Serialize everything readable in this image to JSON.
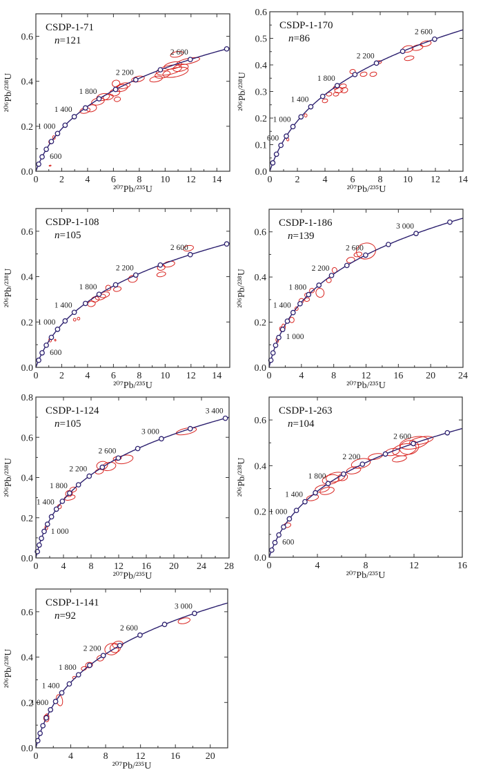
{
  "chart_data": [
    {
      "type": "scatter",
      "subtype": "concordia",
      "title": "CSDP-1-71",
      "n_label": "n",
      "n": "=121",
      "xlabel": "²⁰⁷Pb/²³⁵U",
      "ylabel": "²⁰⁶Pb/²³⁸U",
      "xlim": [
        0,
        15
      ],
      "ylim": [
        0,
        0.7
      ],
      "xticks": [
        "0",
        "2",
        "4",
        "6",
        "8",
        "10",
        "12",
        "14"
      ],
      "xtick_values": [
        0,
        2,
        4,
        6,
        8,
        10,
        12,
        14
      ],
      "yticks": [
        "0.0",
        "0.2",
        "0.4",
        "0.6"
      ],
      "ytick_values": [
        0,
        0.2,
        0.4,
        0.6
      ],
      "marker_interval_ma": 200,
      "marker_max_ma": 2800,
      "age_labels": [
        {
          "age": 600,
          "text": "600"
        },
        {
          "age": 1000,
          "text": "1 000"
        },
        {
          "age": 1400,
          "text": "1 400"
        },
        {
          "age": 1800,
          "text": "1 800"
        },
        {
          "age": 2200,
          "text": "2 200"
        },
        {
          "age": 2600,
          "text": "2 600"
        }
      ],
      "ellipses": [
        [
          1.1,
          0.13,
          0.1,
          0.008
        ],
        [
          1.4,
          0.15,
          0.1,
          0.008
        ],
        [
          1.1,
          0.025,
          0.08,
          0.002
        ],
        [
          3.8,
          0.27,
          0.4,
          0.012
        ],
        [
          4.3,
          0.28,
          0.4,
          0.015
        ],
        [
          4.8,
          0.31,
          0.5,
          0.015
        ],
        [
          5.2,
          0.33,
          0.5,
          0.015
        ],
        [
          5.6,
          0.33,
          0.4,
          0.012
        ],
        [
          6.1,
          0.35,
          0.4,
          0.015
        ],
        [
          6.6,
          0.37,
          0.5,
          0.015
        ],
        [
          6.8,
          0.38,
          0.5,
          0.012
        ],
        [
          6.2,
          0.39,
          0.3,
          0.015
        ],
        [
          6.3,
          0.32,
          0.25,
          0.01
        ],
        [
          7.9,
          0.41,
          0.5,
          0.012
        ],
        [
          9.3,
          0.41,
          0.5,
          0.012
        ],
        [
          9.8,
          0.43,
          0.6,
          0.015
        ],
        [
          10.3,
          0.45,
          1.0,
          0.02
        ],
        [
          10.6,
          0.47,
          0.7,
          0.015
        ],
        [
          11.2,
          0.46,
          0.6,
          0.015
        ],
        [
          10.9,
          0.52,
          0.5,
          0.012
        ],
        [
          11.8,
          0.49,
          0.9,
          0.012
        ],
        [
          10.8,
          0.44,
          1.0,
          0.02
        ]
      ]
    },
    {
      "type": "scatter",
      "subtype": "concordia",
      "title": "CSDP-1-170",
      "n_label": "n",
      "n": "=86",
      "xlabel": "²⁰⁷Pb/²³⁵U",
      "ylabel": "²⁰⁶Pb/²³⁸U",
      "xlim": [
        0,
        14
      ],
      "ylim": [
        0,
        0.6
      ],
      "xticks": [
        "0",
        "2",
        "4",
        "6",
        "8",
        "10",
        "12",
        "14"
      ],
      "xtick_values": [
        0,
        2,
        4,
        6,
        8,
        10,
        12,
        14
      ],
      "yticks": [
        "0.0",
        "0.1",
        "0.2",
        "0.3",
        "0.4",
        "0.5",
        "0.6"
      ],
      "ytick_values": [
        0,
        0.1,
        0.2,
        0.3,
        0.4,
        0.5,
        0.6
      ],
      "marker_interval_ma": 200,
      "marker_max_ma": 2600,
      "age_labels": [
        {
          "age": 600,
          "text": "600"
        },
        {
          "age": 1000,
          "text": "1 000"
        },
        {
          "age": 1400,
          "text": "1 400"
        },
        {
          "age": 1800,
          "text": "1 800"
        },
        {
          "age": 2200,
          "text": "2 200"
        },
        {
          "age": 2600,
          "text": "2 600"
        }
      ],
      "ellipses": [
        [
          1.3,
          0.12,
          0.08,
          0.006
        ],
        [
          2.6,
          0.21,
          0.1,
          0.006
        ],
        [
          4.0,
          0.265,
          0.2,
          0.007
        ],
        [
          4.3,
          0.29,
          0.2,
          0.007
        ],
        [
          4.8,
          0.29,
          0.2,
          0.007
        ],
        [
          5.0,
          0.305,
          0.3,
          0.01
        ],
        [
          5.3,
          0.32,
          0.25,
          0.008
        ],
        [
          5.4,
          0.305,
          0.25,
          0.01
        ],
        [
          4.8,
          0.315,
          0.2,
          0.006
        ],
        [
          6.0,
          0.375,
          0.2,
          0.008
        ],
        [
          6.8,
          0.365,
          0.25,
          0.008
        ],
        [
          7.5,
          0.365,
          0.25,
          0.008
        ],
        [
          7.9,
          0.41,
          0.2,
          0.006
        ],
        [
          10.1,
          0.425,
          0.35,
          0.008
        ],
        [
          10.0,
          0.46,
          0.4,
          0.012
        ],
        [
          10.7,
          0.465,
          0.4,
          0.01
        ],
        [
          11.3,
          0.48,
          0.4,
          0.01
        ]
      ]
    },
    {
      "type": "scatter",
      "subtype": "concordia",
      "title": "CSDP-1-108",
      "n_label": "n",
      "n": "=105",
      "xlabel": "²⁰⁷Pb/²³⁵U",
      "ylabel": "²⁰⁶Pb/²³⁸U",
      "xlim": [
        0,
        15
      ],
      "ylim": [
        0,
        0.7
      ],
      "xticks": [
        "0",
        "2",
        "4",
        "6",
        "8",
        "10",
        "12",
        "14"
      ],
      "xtick_values": [
        0,
        2,
        4,
        6,
        8,
        10,
        12,
        14
      ],
      "yticks": [
        "0.0",
        "0.2",
        "0.4",
        "0.6"
      ],
      "ytick_values": [
        0,
        0.2,
        0.4,
        0.6
      ],
      "marker_interval_ma": 200,
      "marker_max_ma": 2800,
      "age_labels": [
        {
          "age": 600,
          "text": "600"
        },
        {
          "age": 1000,
          "text": "1 000"
        },
        {
          "age": 1400,
          "text": "1 400"
        },
        {
          "age": 1800,
          "text": "1 800"
        },
        {
          "age": 2200,
          "text": "2 200"
        },
        {
          "age": 2600,
          "text": "2 600"
        }
      ],
      "ellipses": [
        [
          1.1,
          0.12,
          0.1,
          0.008
        ],
        [
          1.5,
          0.12,
          0.05,
          0.004
        ],
        [
          3.0,
          0.21,
          0.1,
          0.006
        ],
        [
          3.3,
          0.215,
          0.1,
          0.006
        ],
        [
          4.3,
          0.28,
          0.3,
          0.012
        ],
        [
          4.6,
          0.3,
          0.3,
          0.012
        ],
        [
          5.0,
          0.31,
          0.4,
          0.012
        ],
        [
          5.3,
          0.32,
          0.4,
          0.012
        ],
        [
          5.6,
          0.35,
          0.2,
          0.012
        ],
        [
          6.3,
          0.345,
          0.3,
          0.01
        ],
        [
          7.5,
          0.39,
          0.35,
          0.015
        ],
        [
          9.7,
          0.41,
          0.35,
          0.01
        ],
        [
          9.7,
          0.44,
          0.3,
          0.012
        ],
        [
          10.3,
          0.455,
          0.45,
          0.012
        ],
        [
          11.8,
          0.525,
          0.4,
          0.012
        ]
      ]
    },
    {
      "type": "scatter",
      "subtype": "concordia",
      "title": "CSDP-1-186",
      "n_label": "n",
      "n": "=139",
      "xlabel": "²⁰⁷Pb/²³⁵U",
      "ylabel": "²⁰⁶Pb/²³⁸U",
      "xlim": [
        0,
        24
      ],
      "ylim": [
        0,
        0.7
      ],
      "xticks": [
        "0",
        "4",
        "8",
        "12",
        "16",
        "20",
        "24"
      ],
      "xtick_values": [
        0,
        4,
        8,
        12,
        16,
        20,
        24
      ],
      "yticks": [
        "0.0",
        "0.2",
        "0.4",
        "0.6"
      ],
      "ytick_values": [
        0,
        0.2,
        0.4,
        0.6
      ],
      "marker_interval_ma": 200,
      "marker_max_ma": 3200,
      "age_labels": [
        {
          "age": 1000,
          "text": "1 000"
        },
        {
          "age": 1400,
          "text": "1 400"
        },
        {
          "age": 1800,
          "text": "1 800"
        },
        {
          "age": 2200,
          "text": "2 200"
        },
        {
          "age": 2600,
          "text": "2 600"
        },
        {
          "age": 3000,
          "text": "3 000"
        }
      ],
      "ellipses": [
        [
          1.0,
          0.12,
          0.15,
          0.01
        ],
        [
          1.5,
          0.17,
          0.2,
          0.01
        ],
        [
          1.8,
          0.18,
          0.2,
          0.012
        ],
        [
          2.8,
          0.21,
          0.3,
          0.012
        ],
        [
          3.4,
          0.26,
          0.2,
          0.008
        ],
        [
          4.0,
          0.295,
          0.3,
          0.01
        ],
        [
          4.7,
          0.3,
          0.3,
          0.008
        ],
        [
          4.6,
          0.32,
          0.2,
          0.008
        ],
        [
          5.3,
          0.34,
          0.3,
          0.01
        ],
        [
          6.3,
          0.33,
          0.5,
          0.02
        ],
        [
          7.4,
          0.385,
          0.3,
          0.01
        ],
        [
          8.1,
          0.43,
          0.3,
          0.012
        ],
        [
          10.1,
          0.475,
          0.5,
          0.012
        ],
        [
          11.0,
          0.5,
          0.5,
          0.01
        ],
        [
          12.0,
          0.515,
          1.2,
          0.035
        ]
      ]
    },
    {
      "type": "scatter",
      "subtype": "concordia",
      "title": "CSDP-1-124",
      "n_label": "n",
      "n": "=105",
      "xlabel": "²⁰⁷Pb/²³⁵U",
      "ylabel": "²⁰⁶Pb/²³⁸U",
      "xlim": [
        0,
        28
      ],
      "ylim": [
        0,
        0.8
      ],
      "xticks": [
        "0",
        "4",
        "8",
        "12",
        "16",
        "20",
        "24",
        "28"
      ],
      "xtick_values": [
        0,
        4,
        8,
        12,
        16,
        20,
        24,
        28
      ],
      "yticks": [
        "0.0",
        "0.2",
        "0.4",
        "0.6",
        "0.8"
      ],
      "ytick_values": [
        0,
        0.2,
        0.4,
        0.6,
        0.8
      ],
      "marker_interval_ma": 200,
      "marker_max_ma": 3400,
      "age_labels": [
        {
          "age": 1000,
          "text": "1 000"
        },
        {
          "age": 1400,
          "text": "1 400"
        },
        {
          "age": 1800,
          "text": "1 800"
        },
        {
          "age": 2200,
          "text": "2 200"
        },
        {
          "age": 2600,
          "text": "2 600"
        },
        {
          "age": 3000,
          "text": "3 000"
        },
        {
          "age": 3400,
          "text": "3 400"
        }
      ],
      "ellipses": [
        [
          1.5,
          0.15,
          0.2,
          0.01
        ],
        [
          3.4,
          0.255,
          0.3,
          0.01
        ],
        [
          4.9,
          0.3,
          0.8,
          0.012
        ],
        [
          4.8,
          0.32,
          0.5,
          0.015
        ],
        [
          5.4,
          0.34,
          0.5,
          0.012
        ],
        [
          9.2,
          0.43,
          0.6,
          0.012
        ],
        [
          9.6,
          0.46,
          0.8,
          0.02
        ],
        [
          10.6,
          0.455,
          1.0,
          0.02
        ],
        [
          12.8,
          0.49,
          1.3,
          0.02
        ],
        [
          11.8,
          0.495,
          0.6,
          0.01
        ],
        [
          21.8,
          0.63,
          1.5,
          0.015
        ]
      ]
    },
    {
      "type": "scatter",
      "subtype": "concordia",
      "title": "CSDP-1-263",
      "n_label": "n",
      "n": "=104",
      "xlabel": "²⁰⁷Pb/²³⁵U",
      "ylabel": "²⁰⁶Pb/²³⁸U",
      "xlim": [
        0,
        16
      ],
      "ylim": [
        0,
        0.7
      ],
      "xticks": [
        "0",
        "4",
        "8",
        "12",
        "16"
      ],
      "xtick_values": [
        0,
        4,
        8,
        12,
        16
      ],
      "yticks": [
        "0.0",
        "0.2",
        "0.4",
        "0.6"
      ],
      "ytick_values": [
        0,
        0.2,
        0.4,
        0.6
      ],
      "marker_interval_ma": 200,
      "marker_max_ma": 2800,
      "age_labels": [
        {
          "age": 600,
          "text": "600"
        },
        {
          "age": 1000,
          "text": "1 000"
        },
        {
          "age": 1400,
          "text": "1 400"
        },
        {
          "age": 1800,
          "text": "1 800"
        },
        {
          "age": 2200,
          "text": "2 200"
        },
        {
          "age": 2600,
          "text": "2 600"
        }
      ],
      "ellipses": [
        [
          1.5,
          0.14,
          0.3,
          0.01
        ],
        [
          3.6,
          0.26,
          0.5,
          0.012
        ],
        [
          4.4,
          0.3,
          0.6,
          0.015
        ],
        [
          4.8,
          0.29,
          0.6,
          0.015
        ],
        [
          5.1,
          0.34,
          0.7,
          0.02
        ],
        [
          5.5,
          0.35,
          0.8,
          0.02
        ],
        [
          6.1,
          0.35,
          0.4,
          0.015
        ],
        [
          7.0,
          0.38,
          0.6,
          0.015
        ],
        [
          7.6,
          0.41,
          0.8,
          0.02
        ],
        [
          8.8,
          0.44,
          0.6,
          0.012
        ],
        [
          10.2,
          0.46,
          0.6,
          0.015
        ],
        [
          10.8,
          0.43,
          0.6,
          0.012
        ],
        [
          11.2,
          0.47,
          1.0,
          0.025
        ],
        [
          12.0,
          0.5,
          1.2,
          0.025
        ],
        [
          12.6,
          0.51,
          1.0,
          0.015
        ],
        [
          11.6,
          0.48,
          0.8,
          0.03
        ]
      ]
    },
    {
      "type": "scatter",
      "subtype": "concordia",
      "title": "CSDP-1-141",
      "n_label": "n",
      "n": "=92",
      "xlabel": "²⁰⁷Pb/²³⁵U",
      "ylabel": "²⁰⁶Pb/²³⁸U",
      "xlim": [
        0,
        22
      ],
      "ylim": [
        0,
        0.7
      ],
      "xticks": [
        "0",
        "4",
        "8",
        "12",
        "16",
        "20"
      ],
      "xtick_values": [
        0,
        4,
        8,
        12,
        16,
        20
      ],
      "yticks": [
        "0.0",
        "0.2",
        "0.4",
        "0.6"
      ],
      "ytick_values": [
        0,
        0.2,
        0.4,
        0.6
      ],
      "marker_interval_ma": 200,
      "marker_max_ma": 3000,
      "age_labels": [
        {
          "age": 1000,
          "text": "1 000"
        },
        {
          "age": 1400,
          "text": "1 400"
        },
        {
          "age": 1800,
          "text": "1 800"
        },
        {
          "age": 2200,
          "text": "2 200"
        },
        {
          "age": 2600,
          "text": "2 600"
        },
        {
          "age": 3000,
          "text": "3 000"
        }
      ],
      "ellipses": [
        [
          1.2,
          0.13,
          0.3,
          0.015
        ],
        [
          1.3,
          0.14,
          0.2,
          0.01
        ],
        [
          2.7,
          0.21,
          0.35,
          0.025
        ],
        [
          4.4,
          0.31,
          0.2,
          0.005
        ],
        [
          5.5,
          0.35,
          0.3,
          0.008
        ],
        [
          6.1,
          0.365,
          0.4,
          0.012
        ],
        [
          7.4,
          0.395,
          0.4,
          0.012
        ],
        [
          8.7,
          0.435,
          0.8,
          0.025
        ],
        [
          9.1,
          0.44,
          0.6,
          0.02
        ],
        [
          9.4,
          0.455,
          0.6,
          0.015
        ],
        [
          17.0,
          0.56,
          0.7,
          0.012
        ]
      ]
    }
  ]
}
